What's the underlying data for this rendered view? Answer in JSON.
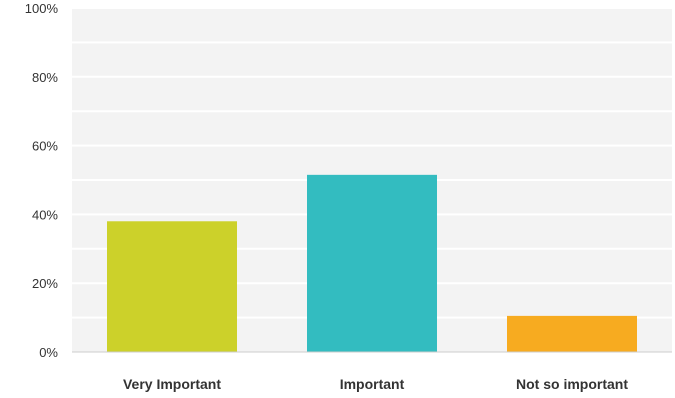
{
  "chart_data": {
    "type": "bar",
    "categories": [
      "Very Important",
      "Important",
      "Not so important"
    ],
    "values": [
      38,
      51.5,
      10.5
    ],
    "value_unit": "%",
    "ylim": [
      0,
      100
    ],
    "yticks": [
      0,
      20,
      40,
      60,
      80,
      100
    ],
    "ytick_labels": [
      "0%",
      "20%",
      "40%",
      "60%",
      "80%",
      "100%"
    ],
    "grid": true,
    "legend": "none",
    "bar_colors": [
      "#ccd12a",
      "#33bcc0",
      "#f7ab20"
    ],
    "plot_background": "#f3f3f3",
    "gridline_color": "#ffffff"
  }
}
